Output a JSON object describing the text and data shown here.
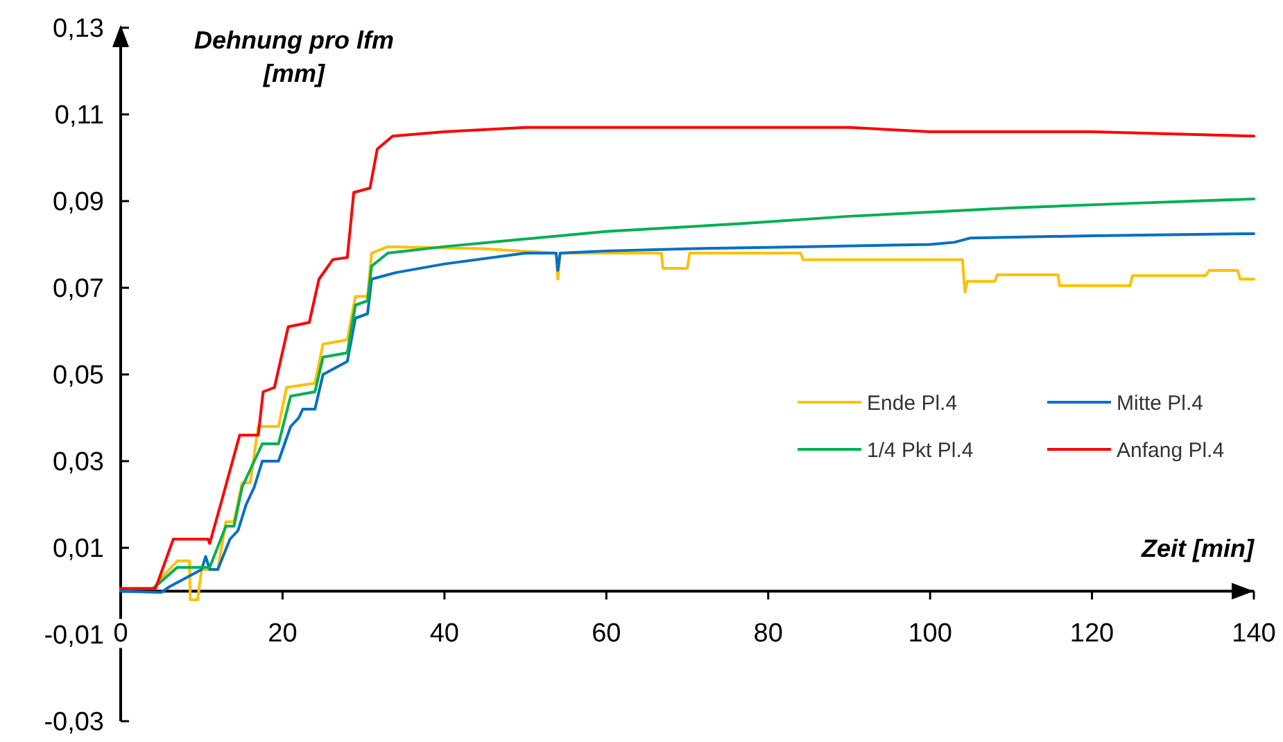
{
  "chart_data": {
    "type": "line",
    "xlabel": "Zeit [min]",
    "ylabel": "Dehnung pro lfm [mm]",
    "xlim": [
      0,
      140
    ],
    "xticks": [
      0,
      20,
      40,
      60,
      80,
      100,
      120,
      140
    ],
    "ylim": [
      -0.03,
      0.13
    ],
    "yticks": [
      {
        "value": -0.03,
        "label": "-0,03"
      },
      {
        "value": -0.01,
        "label": "-0,01"
      },
      {
        "value": 0.01,
        "label": "0,01"
      },
      {
        "value": 0.03,
        "label": "0,03"
      },
      {
        "value": 0.05,
        "label": "0,05"
      },
      {
        "value": 0.07,
        "label": "0,07"
      },
      {
        "value": 0.09,
        "label": "0,09"
      },
      {
        "value": 0.11,
        "label": "0,11"
      },
      {
        "value": 0.13,
        "label": "0,13"
      }
    ],
    "grid": false,
    "legend": "right",
    "marker": "none",
    "line_style": "solid",
    "series": [
      {
        "name": "Ende Pl.4",
        "color": "#ffc000",
        "x": [
          0,
          4,
          5,
          7,
          8.5,
          8.6,
          9.5,
          10,
          12,
          13,
          14,
          15,
          16,
          17,
          19.5,
          20.5,
          24,
          25,
          28,
          29,
          30.5,
          31,
          33,
          45,
          53.8,
          54,
          54.3,
          66.8,
          67,
          70,
          70.3,
          84,
          84.3,
          86,
          104,
          104.3,
          104.6,
          105,
          108,
          108.3,
          115.8,
          116,
          124.7,
          125,
          134,
          134.5,
          138,
          138.3,
          140
        ],
        "values": [
          0.0006,
          0.0006,
          0.003,
          0.007,
          0.007,
          -0.002,
          -0.002,
          0.005,
          0.005,
          0.016,
          0.016,
          0.025,
          0.025,
          0.038,
          0.038,
          0.047,
          0.048,
          0.057,
          0.058,
          0.068,
          0.068,
          0.078,
          0.0795,
          0.079,
          0.078,
          0.072,
          0.078,
          0.078,
          0.0745,
          0.0745,
          0.078,
          0.078,
          0.0765,
          0.0765,
          0.0765,
          0.069,
          0.0715,
          0.0715,
          0.0715,
          0.073,
          0.073,
          0.0705,
          0.0705,
          0.0728,
          0.0728,
          0.074,
          0.074,
          0.072,
          0.072
        ]
      },
      {
        "name": "Mitte Pl.4",
        "color": "#0070c0",
        "x": [
          0,
          5,
          6,
          8,
          10,
          10.5,
          11,
          12,
          13.5,
          14.5,
          15.5,
          16.5,
          17.5,
          19.5,
          21,
          22,
          22.5,
          24,
          25,
          28,
          29,
          30.5,
          31,
          34,
          40,
          50,
          53.8,
          54,
          54.3,
          60,
          70,
          85,
          100,
          103,
          105,
          120,
          140
        ],
        "values": [
          0,
          -0.0003,
          0.001,
          0.003,
          0.005,
          0.008,
          0.005,
          0.005,
          0.012,
          0.014,
          0.02,
          0.024,
          0.03,
          0.03,
          0.038,
          0.04,
          0.042,
          0.042,
          0.05,
          0.053,
          0.063,
          0.064,
          0.072,
          0.0735,
          0.0755,
          0.078,
          0.078,
          0.074,
          0.078,
          0.0785,
          0.079,
          0.0795,
          0.08,
          0.0805,
          0.0815,
          0.082,
          0.0825
        ]
      },
      {
        "name": "1/4 Pkt Pl.4",
        "color": "#00b050",
        "x": [
          0,
          4,
          7,
          11,
          13,
          14,
          15,
          17.5,
          19.5,
          21,
          24,
          25,
          28,
          29,
          30.5,
          31,
          33,
          40,
          48.5,
          60,
          76.6,
          90,
          109.7,
          125,
          140
        ],
        "values": [
          0.0006,
          0.0006,
          0.0055,
          0.0055,
          0.015,
          0.015,
          0.024,
          0.034,
          0.034,
          0.045,
          0.046,
          0.054,
          0.055,
          0.066,
          0.067,
          0.075,
          0.078,
          0.0795,
          0.081,
          0.083,
          0.0848,
          0.0865,
          0.0884,
          0.0895,
          0.0905
        ]
      },
      {
        "name": "Anfang Pl.4",
        "color": "#ff0000",
        "x": [
          0,
          4.3,
          6.5,
          10.8,
          11,
          12.5,
          14.7,
          17,
          17.6,
          19,
          20.7,
          23.3,
          24.5,
          26.2,
          28,
          28.8,
          30.8,
          31.7,
          33.6,
          40,
          50,
          60,
          90,
          100,
          120,
          140
        ],
        "values": [
          0.0006,
          0.0006,
          0.012,
          0.012,
          0.011,
          0.021,
          0.036,
          0.036,
          0.046,
          0.047,
          0.061,
          0.062,
          0.072,
          0.0765,
          0.077,
          0.092,
          0.093,
          0.102,
          0.105,
          0.106,
          0.107,
          0.107,
          0.107,
          0.106,
          0.106,
          0.105
        ]
      }
    ]
  }
}
